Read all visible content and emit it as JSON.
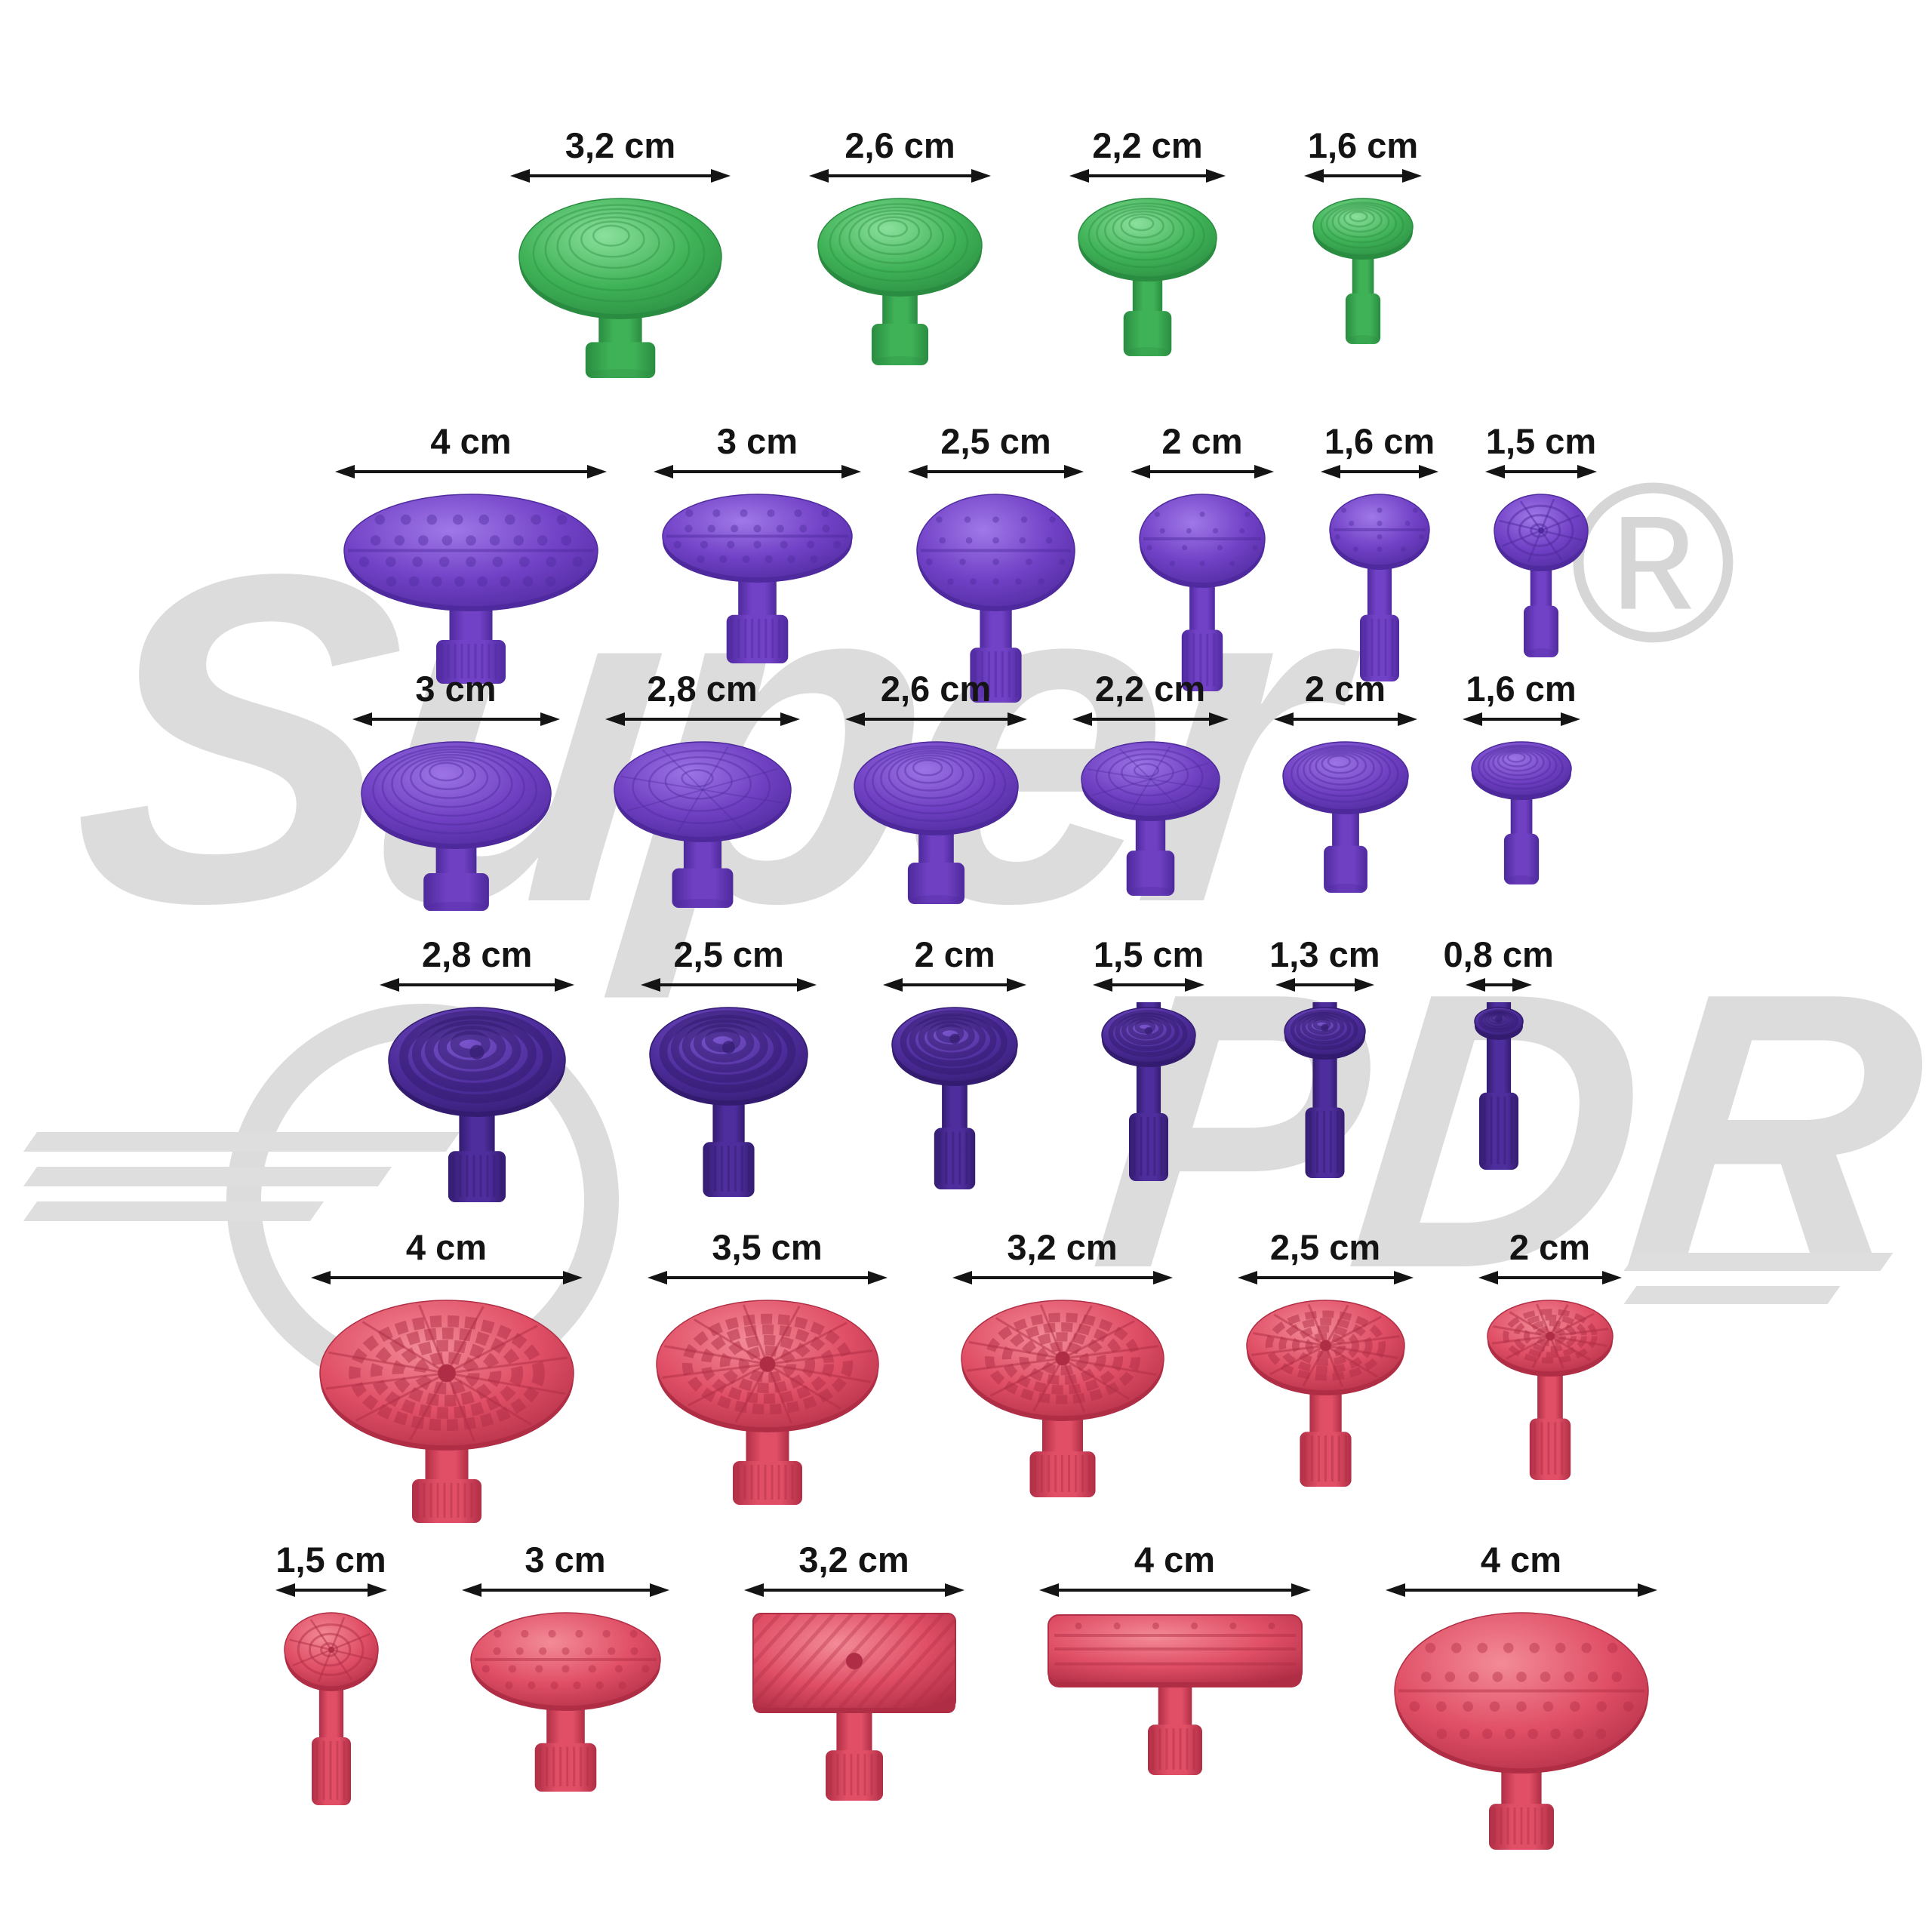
{
  "watermark": {
    "line1": "Super",
    "line2": "PDR",
    "registered": "®",
    "color": "#dcdcdc"
  },
  "unit": "cm",
  "rows": [
    {
      "id": "green-round",
      "color_name": "green",
      "color": {
        "base": "#3fb257",
        "dark": "#2a8c41",
        "light": "#8be09c"
      },
      "tabs": [
        {
          "label": "3,2 cm",
          "cm": 3.2,
          "shape": "dome-rings",
          "stem": "smooth"
        },
        {
          "label": "2,6 cm",
          "cm": 2.6,
          "shape": "dome-rings",
          "stem": "smooth"
        },
        {
          "label": "2,2 cm",
          "cm": 2.2,
          "shape": "dome-rings",
          "stem": "smooth"
        },
        {
          "label": "1,6 cm",
          "cm": 1.6,
          "shape": "dome-rings",
          "stem": "smooth"
        }
      ]
    },
    {
      "id": "purple-bumped",
      "color_name": "purple",
      "color": {
        "base": "#7141c6",
        "dark": "#4f2a9e",
        "light": "#a078e8"
      },
      "tabs": [
        {
          "label": "4 cm",
          "cm": 4.0,
          "shape": "oval-bumps-wide",
          "stem": "ribbed"
        },
        {
          "label": "3 cm",
          "cm": 3.0,
          "shape": "oval-bumps-wide",
          "stem": "ribbed"
        },
        {
          "label": "2,5 cm",
          "cm": 2.5,
          "shape": "round-bumps",
          "stem": "ribbed"
        },
        {
          "label": "2 cm",
          "cm": 2.0,
          "shape": "round-bumps",
          "stem": "ribbed"
        },
        {
          "label": "1,6 cm",
          "cm": 1.6,
          "shape": "round-bumps",
          "stem": "ribbed"
        },
        {
          "label": "1,5 cm",
          "cm": 1.5,
          "shape": "web-round",
          "stem": "smooth"
        }
      ]
    },
    {
      "id": "purple-domes",
      "color_name": "purple",
      "color": {
        "base": "#6f40c2",
        "dark": "#4d299b",
        "light": "#9d74e6"
      },
      "tabs": [
        {
          "label": "3 cm",
          "cm": 3.0,
          "shape": "dome-rings-tall",
          "stem": "smooth"
        },
        {
          "label": "2,8 cm",
          "cm": 2.8,
          "shape": "dome-web",
          "stem": "smooth"
        },
        {
          "label": "2,6 cm",
          "cm": 2.6,
          "shape": "dome-rings-tall",
          "stem": "smooth"
        },
        {
          "label": "2,2 cm",
          "cm": 2.2,
          "shape": "dome-web",
          "stem": "smooth"
        },
        {
          "label": "2 cm",
          "cm": 2.0,
          "shape": "dome-rings-tall",
          "stem": "smooth"
        },
        {
          "label": "1,6 cm",
          "cm": 1.6,
          "shape": "dome-rings-tall",
          "stem": "smooth"
        }
      ]
    },
    {
      "id": "dark-purple-rings",
      "color_name": "dark-purple",
      "color": {
        "base": "#4e2d9c",
        "dark": "#331c70",
        "light": "#7a55cc"
      },
      "tabs": [
        {
          "label": "2,8 cm",
          "cm": 2.8,
          "shape": "rings-bold",
          "stem": "ribbed"
        },
        {
          "label": "2,5 cm",
          "cm": 2.5,
          "shape": "rings-bold",
          "stem": "ribbed"
        },
        {
          "label": "2 cm",
          "cm": 2.0,
          "shape": "rings-bold",
          "stem": "ribbed"
        },
        {
          "label": "1,5 cm",
          "cm": 1.5,
          "shape": "rings-bold",
          "stem": "ribbed"
        },
        {
          "label": "1,3 cm",
          "cm": 1.3,
          "shape": "rings-bold",
          "stem": "ribbed"
        },
        {
          "label": "0,8 cm",
          "cm": 0.8,
          "shape": "rings-bold",
          "stem": "ribbed"
        }
      ]
    },
    {
      "id": "red-web-discs",
      "color_name": "red",
      "color": {
        "base": "#e04f66",
        "dark": "#b02e45",
        "light": "#f38b97"
      },
      "tabs": [
        {
          "label": "4 cm",
          "cm": 4.0,
          "shape": "web-block",
          "stem": "ribbed"
        },
        {
          "label": "3,5 cm",
          "cm": 3.5,
          "shape": "web-block",
          "stem": "ribbed"
        },
        {
          "label": "3,2 cm",
          "cm": 3.2,
          "shape": "web-block",
          "stem": "ribbed"
        },
        {
          "label": "2,5 cm",
          "cm": 2.5,
          "shape": "web-block",
          "stem": "ribbed"
        },
        {
          "label": "2 cm",
          "cm": 2.0,
          "shape": "web-block",
          "stem": "ribbed"
        }
      ]
    },
    {
      "id": "red-mixed-shapes",
      "color_name": "red",
      "color": {
        "base": "#e04f66",
        "dark": "#b02e45",
        "light": "#f38b97"
      },
      "tabs": [
        {
          "label": "1,5 cm",
          "cm": 1.5,
          "shape": "web-small",
          "stem": "ribbed"
        },
        {
          "label": "3 cm",
          "cm": 3.0,
          "shape": "oval-bumps",
          "stem": "ribbed"
        },
        {
          "label": "3,2 cm",
          "cm": 3.2,
          "shape": "rect-diag",
          "stem": "ribbed"
        },
        {
          "label": "4 cm",
          "cm": 4.0,
          "shape": "bar-ridged",
          "stem": "ribbed"
        },
        {
          "label": "4 cm",
          "cm": 4.0,
          "shape": "oval-bumps-big",
          "stem": "ribbed"
        }
      ]
    }
  ]
}
